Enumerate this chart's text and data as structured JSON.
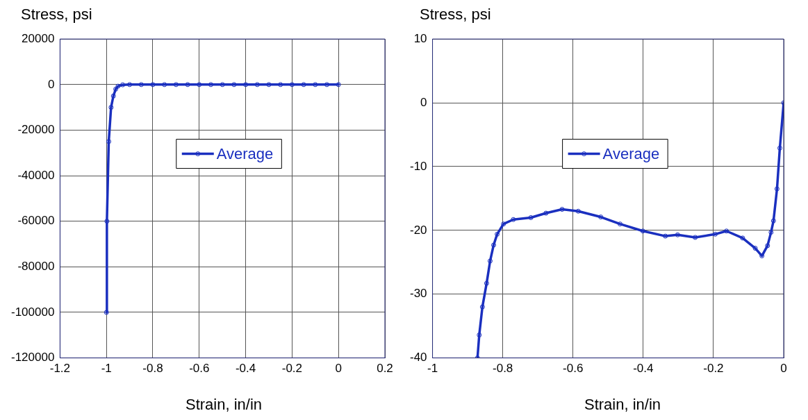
{
  "chart_data": [
    {
      "type": "line",
      "xlabel": "Strain, in/in",
      "ylabel": "Stress, psi",
      "xlim": [
        -1.2,
        0.2
      ],
      "xticks": [
        -1.2,
        -1,
        -0.8,
        -0.6,
        -0.4,
        -0.2,
        0,
        0.2
      ],
      "ylim": [
        -120000,
        20000
      ],
      "yticks": [
        -120000,
        -100000,
        -80000,
        -60000,
        -40000,
        -20000,
        0,
        20000
      ],
      "grid": true,
      "legend": "center",
      "marker": "circle",
      "line_style": "solid",
      "series": [
        {
          "name": "Average",
          "color": "#1a2fbf",
          "x": [
            -1,
            -0.998,
            -0.99,
            -0.98,
            -0.97,
            -0.96,
            -0.95,
            -0.93,
            -0.9,
            -0.85,
            -0.8,
            -0.75,
            -0.7,
            -0.65,
            -0.6,
            -0.55,
            -0.5,
            -0.45,
            -0.4,
            -0.35,
            -0.3,
            -0.25,
            -0.2,
            -0.15,
            -0.1,
            -0.05,
            0
          ],
          "values": [
            -100000,
            -60000,
            -25000,
            -10000,
            -5000,
            -2000,
            -700,
            -100,
            0,
            0,
            0,
            0,
            0,
            0,
            0,
            0,
            0,
            0,
            0,
            0,
            0,
            0,
            0,
            0,
            0,
            0,
            0
          ]
        }
      ]
    },
    {
      "type": "line",
      "xlabel": "Strain, in/in",
      "ylabel": "Stress, psi",
      "xlim": [
        -1,
        0
      ],
      "xticks": [
        -1,
        -0.8,
        -0.6,
        -0.4,
        -0.2,
        0
      ],
      "ylim": [
        -40,
        10
      ],
      "yticks": [
        -40,
        -30,
        -20,
        -10,
        0,
        10
      ],
      "grid": true,
      "legend": "center",
      "marker": "circle",
      "line_style": "solid",
      "series": [
        {
          "name": "Average",
          "color": "#1a2fbf",
          "x": [
            -0.872,
            -0.867,
            -0.858,
            -0.846,
            -0.836,
            -0.826,
            -0.816,
            -0.798,
            -0.77,
            -0.72,
            -0.677,
            -0.631,
            -0.585,
            -0.521,
            -0.466,
            -0.401,
            -0.337,
            -0.302,
            -0.252,
            -0.195,
            -0.163,
            -0.117,
            -0.081,
            -0.062,
            -0.046,
            -0.036,
            -0.029,
            -0.019,
            -0.011,
            0
          ],
          "values": [
            -40,
            -36.4,
            -32,
            -28.3,
            -24.8,
            -22.3,
            -20.6,
            -19,
            -18.3,
            -18,
            -17.3,
            -16.7,
            -17,
            -17.9,
            -19,
            -20.1,
            -20.9,
            -20.7,
            -21.1,
            -20.6,
            -20.1,
            -21.2,
            -22.8,
            -24,
            -22.4,
            -20.3,
            -18.5,
            -13.5,
            -7.1,
            0
          ]
        }
      ]
    }
  ]
}
